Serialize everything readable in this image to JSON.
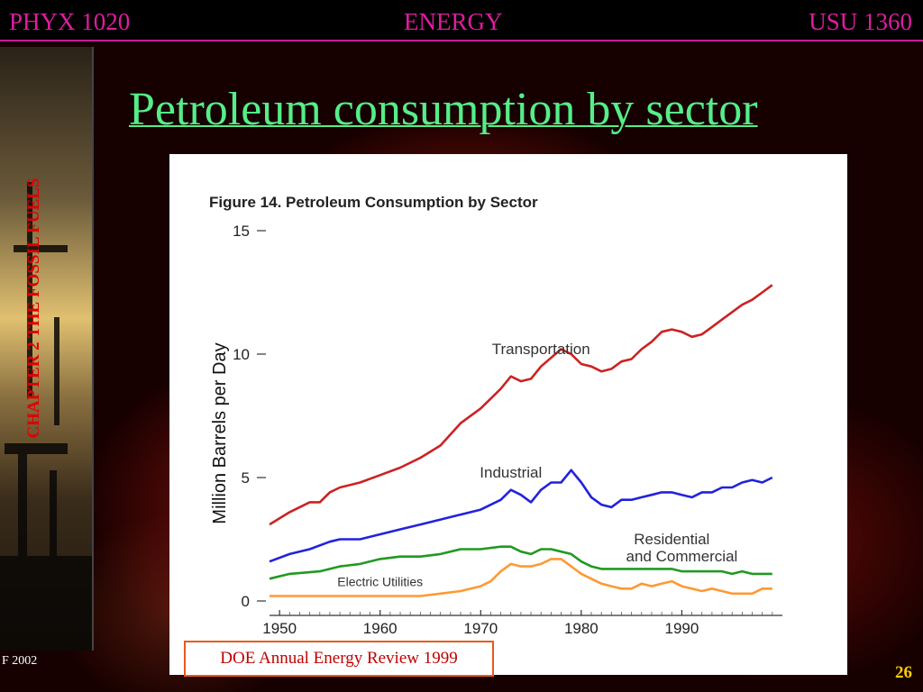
{
  "header": {
    "course": "PHYX 1020",
    "topic": "ENERGY",
    "room": "USU 1360"
  },
  "sidebar": {
    "chapter_label": "CHAPTER 2 THE FOSSIL FUELS"
  },
  "slide": {
    "title": "Petroleum consumption by sector",
    "citation": "DOE Annual Energy Review 1999",
    "footer_year": "F 2002",
    "page_number": "26"
  },
  "colors": {
    "header_text": "#e01ca0",
    "title_text": "#55ee88",
    "chapter_text": "#e00000",
    "page_number": "#ffcc00",
    "transportation": "#cc2222",
    "industrial": "#2222dd",
    "residential_commercial": "#229922",
    "electric_utilities": "#ff9933"
  },
  "chart_data": {
    "type": "line",
    "title": "Figure 14. Petroleum Consumption by Sector",
    "xlabel": "",
    "ylabel": "Million Barrels per Day",
    "xlim": [
      1949,
      2000
    ],
    "ylim": [
      0,
      15
    ],
    "x_ticks": [
      "1950",
      "1960",
      "1970",
      "1980",
      "1990"
    ],
    "y_ticks": [
      "0",
      "5",
      "10",
      "15"
    ],
    "grid": false,
    "legend": "inline labels",
    "series": [
      {
        "name": "Transportation",
        "color": "#cc2222",
        "x": [
          1949,
          1951,
          1953,
          1954,
          1955,
          1956,
          1958,
          1960,
          1962,
          1964,
          1966,
          1968,
          1970,
          1972,
          1973,
          1974,
          1975,
          1976,
          1978,
          1979,
          1980,
          1981,
          1982,
          1983,
          1984,
          1985,
          1986,
          1987,
          1988,
          1989,
          1990,
          1991,
          1992,
          1993,
          1994,
          1995,
          1996,
          1997,
          1998,
          1999
        ],
        "values": [
          3.1,
          3.6,
          4.0,
          4.0,
          4.4,
          4.6,
          4.8,
          5.1,
          5.4,
          5.8,
          6.3,
          7.2,
          7.8,
          8.6,
          9.1,
          8.9,
          9.0,
          9.5,
          10.2,
          10.0,
          9.6,
          9.5,
          9.3,
          9.4,
          9.7,
          9.8,
          10.2,
          10.5,
          10.9,
          11.0,
          10.9,
          10.7,
          10.8,
          11.1,
          11.4,
          11.7,
          12.0,
          12.2,
          12.5,
          12.8
        ]
      },
      {
        "name": "Industrial",
        "color": "#2222dd",
        "x": [
          1949,
          1951,
          1953,
          1955,
          1956,
          1958,
          1960,
          1962,
          1964,
          1966,
          1968,
          1970,
          1972,
          1973,
          1974,
          1975,
          1976,
          1977,
          1978,
          1979,
          1980,
          1981,
          1982,
          1983,
          1984,
          1985,
          1986,
          1987,
          1988,
          1989,
          1990,
          1991,
          1992,
          1993,
          1994,
          1995,
          1996,
          1997,
          1998,
          1999
        ],
        "values": [
          1.6,
          1.9,
          2.1,
          2.4,
          2.5,
          2.5,
          2.7,
          2.9,
          3.1,
          3.3,
          3.5,
          3.7,
          4.1,
          4.5,
          4.3,
          4.0,
          4.5,
          4.8,
          4.8,
          5.3,
          4.8,
          4.2,
          3.9,
          3.8,
          4.1,
          4.1,
          4.2,
          4.3,
          4.4,
          4.4,
          4.3,
          4.2,
          4.4,
          4.4,
          4.6,
          4.6,
          4.8,
          4.9,
          4.8,
          5.0
        ]
      },
      {
        "name": "Residential and Commercial",
        "color": "#229922",
        "x": [
          1949,
          1951,
          1954,
          1956,
          1958,
          1960,
          1962,
          1964,
          1966,
          1968,
          1970,
          1972,
          1973,
          1974,
          1975,
          1976,
          1977,
          1978,
          1979,
          1980,
          1981,
          1982,
          1983,
          1984,
          1985,
          1986,
          1987,
          1988,
          1989,
          1990,
          1991,
          1992,
          1993,
          1994,
          1995,
          1996,
          1997,
          1998,
          1999
        ],
        "values": [
          0.9,
          1.1,
          1.2,
          1.4,
          1.5,
          1.7,
          1.8,
          1.8,
          1.9,
          2.1,
          2.1,
          2.2,
          2.2,
          2.0,
          1.9,
          2.1,
          2.1,
          2.0,
          1.9,
          1.6,
          1.4,
          1.3,
          1.3,
          1.3,
          1.3,
          1.3,
          1.3,
          1.3,
          1.3,
          1.2,
          1.2,
          1.2,
          1.2,
          1.2,
          1.1,
          1.2,
          1.1,
          1.1,
          1.1
        ]
      },
      {
        "name": "Electric Utilities",
        "color": "#ff9933",
        "x": [
          1949,
          1952,
          1955,
          1958,
          1961,
          1964,
          1966,
          1968,
          1970,
          1971,
          1972,
          1973,
          1974,
          1975,
          1976,
          1977,
          1978,
          1979,
          1980,
          1981,
          1982,
          1983,
          1984,
          1985,
          1986,
          1987,
          1988,
          1989,
          1990,
          1991,
          1992,
          1993,
          1994,
          1995,
          1996,
          1997,
          1998,
          1999
        ],
        "values": [
          0.2,
          0.2,
          0.2,
          0.2,
          0.2,
          0.2,
          0.3,
          0.4,
          0.6,
          0.8,
          1.2,
          1.5,
          1.4,
          1.4,
          1.5,
          1.7,
          1.7,
          1.4,
          1.1,
          0.9,
          0.7,
          0.6,
          0.5,
          0.5,
          0.7,
          0.6,
          0.7,
          0.8,
          0.6,
          0.5,
          0.4,
          0.5,
          0.4,
          0.3,
          0.3,
          0.3,
          0.5,
          0.5
        ]
      }
    ],
    "annotations": [
      {
        "text": "Transportation",
        "x": 1976,
        "y": 10.0
      },
      {
        "text": "Industrial",
        "x": 1973,
        "y": 5.0
      },
      {
        "text": "Residential",
        "x": 1989,
        "y": 2.3
      },
      {
        "text": "and Commercial",
        "x": 1990,
        "y": 1.6
      },
      {
        "text": "Electric Utilities",
        "x": 1960,
        "y": 0.6
      }
    ]
  }
}
